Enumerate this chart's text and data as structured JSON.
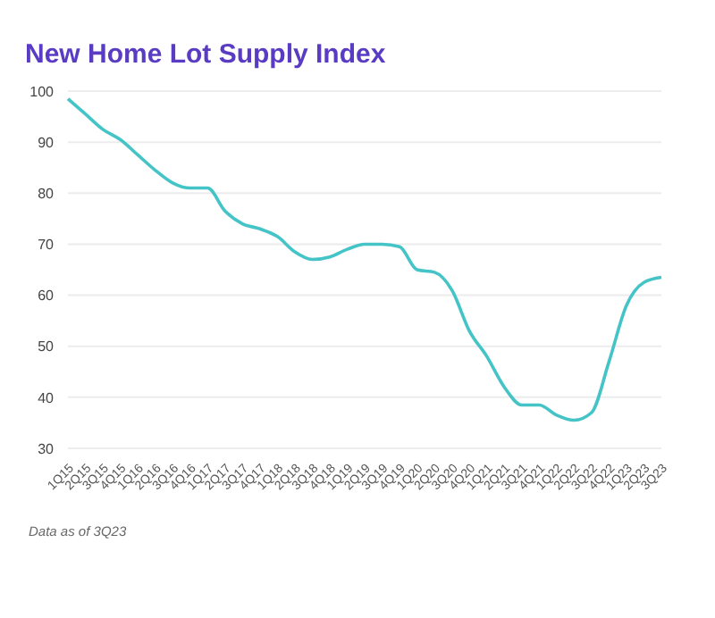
{
  "chart_data": {
    "type": "line",
    "title": "New Home Lot Supply Index",
    "categories": [
      "1Q15",
      "2Q15",
      "3Q15",
      "4Q15",
      "1Q16",
      "2Q16",
      "3Q16",
      "4Q16",
      "1Q17",
      "2Q17",
      "3Q17",
      "4Q17",
      "1Q18",
      "2Q18",
      "3Q18",
      "4Q18",
      "1Q19",
      "2Q19",
      "3Q19",
      "4Q19",
      "1Q20",
      "2Q20",
      "3Q20",
      "4Q20",
      "1Q21",
      "2Q21",
      "3Q21",
      "4Q21",
      "1Q22",
      "2Q22",
      "3Q22",
      "4Q22",
      "1Q23",
      "2Q23",
      "3Q23"
    ],
    "series": [
      {
        "color": "#45c4c8",
        "values": [
          98.5,
          95.5,
          92.5,
          90.5,
          87.5,
          84.5,
          82,
          81,
          81,
          76.5,
          74,
          73,
          71.5,
          68.5,
          67,
          67.5,
          69,
          70,
          70,
          69.5,
          65,
          64.5,
          61,
          53,
          48,
          42,
          38.5,
          38.5,
          36.5,
          35.5,
          37,
          47,
          58,
          62.5,
          63.5
        ]
      }
    ],
    "ylim": [
      30,
      100
    ],
    "yticks": [
      30,
      40,
      50,
      60,
      70,
      80,
      90,
      100
    ],
    "grid": "y",
    "legend": false,
    "marker": "none",
    "line_style": "solid",
    "annotations": [
      "Data as of 3Q23"
    ]
  }
}
